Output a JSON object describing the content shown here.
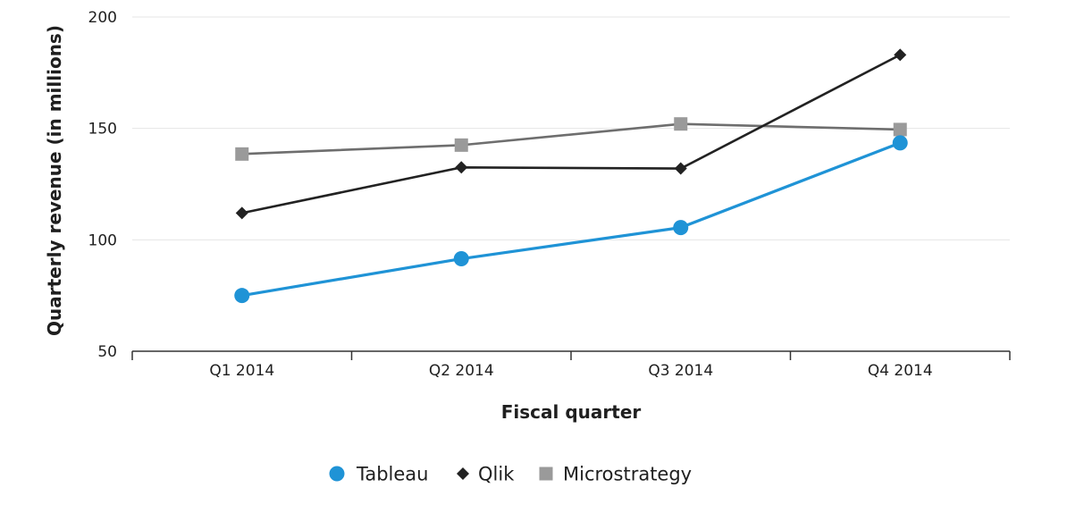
{
  "chart_data": {
    "type": "line",
    "categories": [
      "Q1 2014",
      "Q2 2014",
      "Q3 2014",
      "Q4 2014"
    ],
    "xlabel": "Fiscal quarter",
    "ylabel": "Quarterly revenue (in millions)",
    "ylim": [
      50,
      200
    ],
    "yticks": [
      50,
      100,
      150,
      200
    ],
    "grid": true,
    "legend_position": "bottom",
    "series": [
      {
        "name": "Tableau",
        "values": [
          75,
          91.5,
          105.5,
          143.5
        ],
        "color": "#1f93d6",
        "marker": "circle",
        "line_color": "#1f93d6"
      },
      {
        "name": "Qlik",
        "values": [
          112,
          132.5,
          132,
          183
        ],
        "color": "#222222",
        "marker": "diamond",
        "line_color": "#222222"
      },
      {
        "name": "Microstrategy",
        "values": [
          138.5,
          142.5,
          152,
          149.5
        ],
        "color": "#9a9a9a",
        "marker": "square",
        "line_color": "#6e6e6e"
      }
    ]
  }
}
